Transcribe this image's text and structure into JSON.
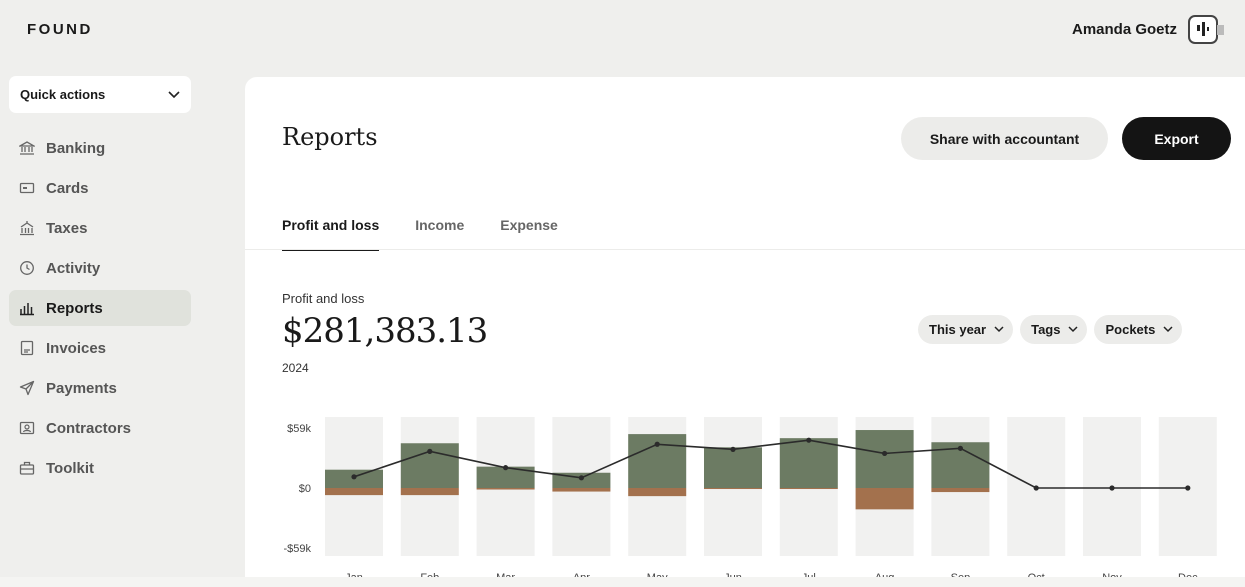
{
  "brand": {
    "logo": "FOUND"
  },
  "user": {
    "name": "Amanda Goetz"
  },
  "quick_actions": {
    "label": "Quick actions"
  },
  "sidebar": {
    "items": [
      {
        "label": "Banking",
        "icon": "bank-icon"
      },
      {
        "label": "Cards",
        "icon": "card-icon"
      },
      {
        "label": "Taxes",
        "icon": "government-building-icon"
      },
      {
        "label": "Activity",
        "icon": "clock-icon"
      },
      {
        "label": "Reports",
        "icon": "bar-chart-icon",
        "active": true
      },
      {
        "label": "Invoices",
        "icon": "receipt-icon"
      },
      {
        "label": "Payments",
        "icon": "send-icon"
      },
      {
        "label": "Contractors",
        "icon": "contact-card-icon"
      },
      {
        "label": "Toolkit",
        "icon": "toolbox-icon"
      }
    ]
  },
  "page": {
    "title": "Reports",
    "share_label": "Share with accountant",
    "export_label": "Export"
  },
  "tabs": [
    {
      "label": "Profit and loss",
      "active": true
    },
    {
      "label": "Income"
    },
    {
      "label": "Expense"
    }
  ],
  "summary": {
    "label": "Profit and loss",
    "amount": "$281,383.13",
    "year": "2024"
  },
  "filters": [
    {
      "label": "This year"
    },
    {
      "label": "Tags"
    },
    {
      "label": "Pockets"
    }
  ],
  "colors": {
    "income": "#6c7b63",
    "expense": "#a3714d",
    "column_bg": "#f1f1f0",
    "line": "#2b2b2b",
    "active_nav": "#e0e2dc"
  },
  "chart_data": {
    "type": "bar",
    "categories": [
      "Jan",
      "Feb",
      "Mar",
      "Apr",
      "May",
      "Jun",
      "Jul",
      "Aug",
      "Sep",
      "Oct",
      "Nov",
      "Dec"
    ],
    "series": [
      {
        "type": "bar",
        "values": [
          18000,
          44000,
          21000,
          15000,
          53000,
          40000,
          49000,
          57000,
          45000,
          0,
          0,
          0
        ]
      },
      {
        "type": "bar",
        "values": [
          -7000,
          -7000,
          -1500,
          -3500,
          -8000,
          -1000,
          -1000,
          -21000,
          -4000,
          0,
          0,
          0
        ]
      },
      {
        "type": "line",
        "values": [
          11000,
          36000,
          20000,
          10000,
          43000,
          38000,
          47000,
          34000,
          39000,
          0,
          0,
          0
        ]
      }
    ],
    "yticks": [
      "$59k",
      "$0",
      "-$59k"
    ],
    "ylim": [
      -59000,
      59000
    ]
  }
}
